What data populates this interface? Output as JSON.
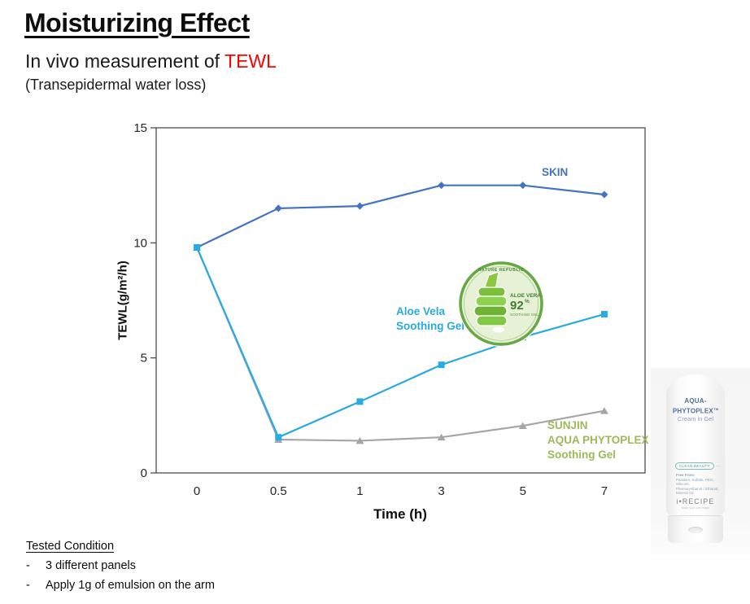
{
  "header": {
    "title": "Moisturizing Effect",
    "subtitle_prefix": "In vivo measurement of ",
    "subtitle_highlight": "TEWL",
    "subtitle_note": "(Transepidermal water loss)"
  },
  "chart_data": {
    "type": "line",
    "xlabel": "Time (h)",
    "ylabel": "TEWL(g/m²/h)",
    "categories": [
      "0",
      "0.5",
      "1",
      "3",
      "5",
      "7"
    ],
    "y_ticks": [
      15,
      10,
      5,
      0
    ],
    "ylim": [
      0,
      15
    ],
    "grid": false,
    "legend_position": "inline-labels",
    "axis_color": "#404040",
    "series": [
      {
        "name": "SKIN",
        "label_lines": [
          "SKIN"
        ],
        "color": "#4472c4",
        "label_color": "#4472c4",
        "marker": "diamond",
        "values": [
          9.8,
          11.5,
          11.6,
          12.5,
          12.5,
          12.1
        ]
      },
      {
        "name": "SUNJIN AQUA PHYTOPLEX Soothing Gel",
        "label_lines": [
          "SUNJIN",
          "AQUA PHYTOPLEX",
          "Soothing Gel"
        ],
        "color": "#a6a6a6",
        "label_color": "#9bbb59",
        "marker": "triangle",
        "values": [
          9.8,
          1.45,
          1.4,
          1.55,
          2.05,
          2.7
        ]
      },
      {
        "name": "Aloe Vela Soothing Gel",
        "label_lines": [
          "Aloe Vela",
          "Soothing Gel"
        ],
        "color": "#29abe2",
        "label_color": "#29abe2",
        "marker": "square",
        "values": [
          9.8,
          1.55,
          3.1,
          4.7,
          5.9,
          6.9
        ]
      }
    ]
  },
  "aloe_badge": {
    "brand": "NATURE REPUBLIC",
    "product": "ALOE VERA",
    "pct": "92",
    "pct_sign": "%",
    "subname": "SOOTHING GEL"
  },
  "product_tube": {
    "brand_line1": "AQUA-",
    "brand_line2": "PHYTOPLEX",
    "tm": "TM",
    "subtitle": "Cream in Gel",
    "badge": "CLEAN BEAUTY",
    "freefrom_head": "Free From:",
    "freefrom_lines": [
      "Paraben, Sulfate, PEG, Silicone,",
      "Phenoxyethanol / Ethanol,",
      "Mineral Oil"
    ],
    "logo": "i•RECIPE",
    "tagline": "Make your own recipe"
  },
  "tested_condition": {
    "heading": "Tested Condition",
    "bullet": "-",
    "items": [
      "3 different panels",
      "Apply 1g of emulsion on the arm"
    ]
  }
}
